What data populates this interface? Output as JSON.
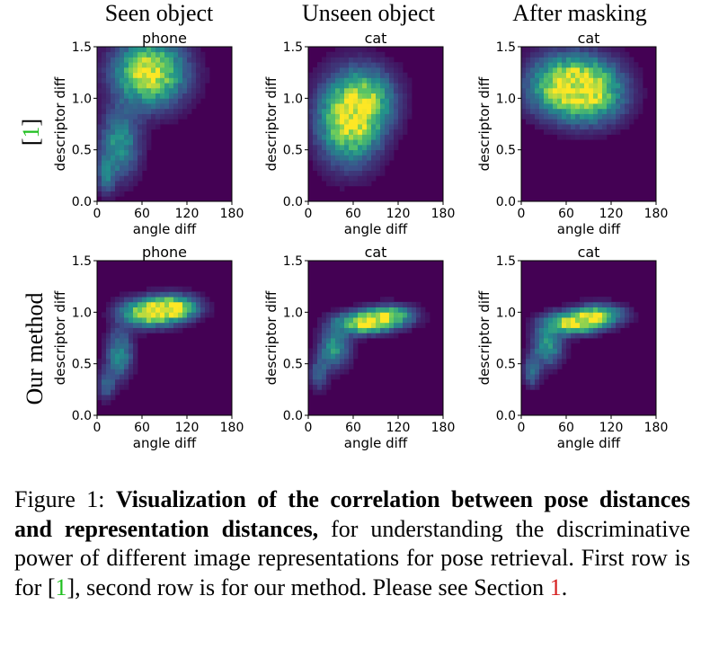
{
  "column_headers": [
    "Seen object",
    "Unseen object",
    "After masking"
  ],
  "row_headers": [
    {
      "open": "[",
      "ref": "1",
      "close": "]"
    },
    {
      "text": "Our method"
    }
  ],
  "chart_data": [
    {
      "type": "heatmap",
      "row": 0,
      "col": 0,
      "title": "phone",
      "xlabel": "angle diff",
      "ylabel": "descriptor diff",
      "xlim": [
        0,
        180
      ],
      "ylim": [
        0,
        1.5
      ],
      "xticks": [
        "0",
        "60",
        "120",
        "180"
      ],
      "yticks": [
        "0.0",
        "0.5",
        "1.0",
        "1.5"
      ],
      "blobs": [
        [
          70,
          1.25,
          32,
          0.22,
          1.0
        ],
        [
          30,
          0.55,
          18,
          0.22,
          0.55
        ],
        [
          12,
          0.25,
          8,
          0.12,
          0.35
        ]
      ]
    },
    {
      "type": "heatmap",
      "row": 0,
      "col": 1,
      "title": "cat",
      "xlabel": "angle diff",
      "ylabel": "descriptor diff",
      "xlim": [
        0,
        180
      ],
      "ylim": [
        0,
        1.5
      ],
      "xticks": [
        "0",
        "60",
        "120",
        "180"
      ],
      "yticks": [
        "0.0",
        "0.5",
        "1.0",
        "1.5"
      ],
      "blobs": [
        [
          55,
          0.8,
          28,
          0.28,
          1.0
        ],
        [
          85,
          1.0,
          25,
          0.2,
          0.45
        ]
      ]
    },
    {
      "type": "heatmap",
      "row": 0,
      "col": 2,
      "title": "cat",
      "xlabel": "angle diff",
      "ylabel": "descriptor diff",
      "xlim": [
        0,
        180
      ],
      "ylim": [
        0,
        1.5
      ],
      "xticks": [
        "0",
        "60",
        "120",
        "180"
      ],
      "yticks": [
        "0.0",
        "0.5",
        "1.0",
        "1.5"
      ],
      "blobs": [
        [
          62,
          1.12,
          35,
          0.2,
          1.0
        ],
        [
          100,
          1.05,
          30,
          0.2,
          0.5
        ]
      ]
    },
    {
      "type": "heatmap",
      "row": 1,
      "col": 0,
      "title": "phone",
      "xlabel": "angle diff",
      "ylabel": "descriptor diff",
      "xlim": [
        0,
        180
      ],
      "ylim": [
        0,
        1.5
      ],
      "xticks": [
        "0",
        "60",
        "120",
        "180"
      ],
      "yticks": [
        "0.0",
        "0.5",
        "1.0",
        "1.5"
      ],
      "blobs": [
        [
          70,
          1.0,
          25,
          0.09,
          1.0
        ],
        [
          105,
          1.05,
          22,
          0.08,
          0.8
        ],
        [
          30,
          0.6,
          12,
          0.16,
          0.5
        ],
        [
          12,
          0.3,
          8,
          0.1,
          0.35
        ]
      ]
    },
    {
      "type": "heatmap",
      "row": 1,
      "col": 1,
      "title": "cat",
      "xlabel": "angle diff",
      "ylabel": "descriptor diff",
      "xlim": [
        0,
        180
      ],
      "ylim": [
        0,
        1.5
      ],
      "xticks": [
        "0",
        "60",
        "120",
        "180"
      ],
      "yticks": [
        "0.0",
        "0.5",
        "1.0",
        "1.5"
      ],
      "blobs": [
        [
          75,
          0.9,
          25,
          0.07,
          1.0
        ],
        [
          110,
          0.97,
          22,
          0.07,
          0.7
        ],
        [
          35,
          0.65,
          14,
          0.13,
          0.55
        ],
        [
          14,
          0.4,
          8,
          0.1,
          0.35
        ]
      ]
    },
    {
      "type": "heatmap",
      "row": 1,
      "col": 2,
      "title": "cat",
      "xlabel": "angle diff",
      "ylabel": "descriptor diff",
      "xlim": [
        0,
        180
      ],
      "ylim": [
        0,
        1.5
      ],
      "xticks": [
        "0",
        "60",
        "120",
        "180"
      ],
      "yticks": [
        "0.0",
        "0.5",
        "1.0",
        "1.5"
      ],
      "blobs": [
        [
          70,
          0.9,
          25,
          0.07,
          1.0
        ],
        [
          105,
          0.98,
          22,
          0.07,
          0.7
        ],
        [
          35,
          0.68,
          14,
          0.13,
          0.55
        ],
        [
          14,
          0.42,
          8,
          0.1,
          0.35
        ]
      ]
    }
  ],
  "caption": {
    "prefix": "Figure 1: ",
    "bold": "Visualization of the correlation between pose distances and representation distances,",
    "part1": " for understanding the discriminative power of different image representations for pose retrieval. First row is for [",
    "ref1": "1",
    "part2": "], second row is for our method. Please see Section ",
    "ref2": "1",
    "part3": "."
  },
  "colors": {
    "low": "#440154",
    "mid": "#21918c",
    "high": "#fde725",
    "ref_green": "#1fbf1f",
    "ref_red": "#d62020"
  }
}
